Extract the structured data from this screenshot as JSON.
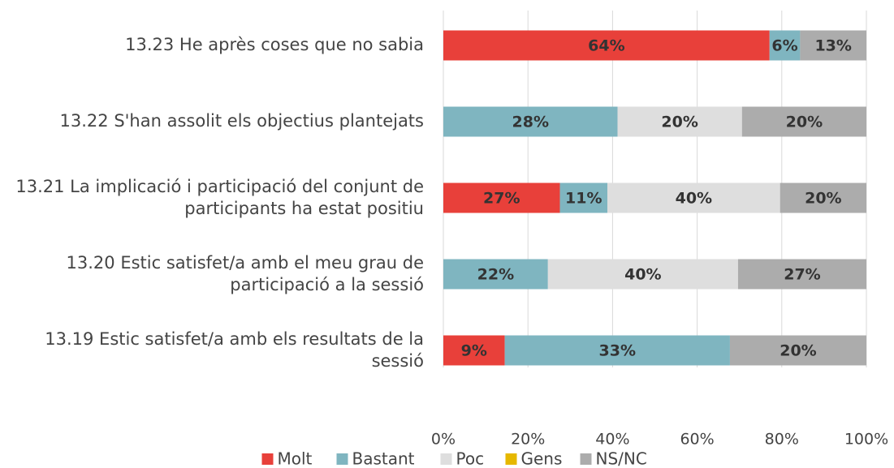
{
  "chart_data": {
    "type": "bar",
    "orientation": "horizontal",
    "stacking": "percent",
    "categories": [
      "13.23 He après coses que no sabia",
      "13.22 S'han assolit els objectius plantejats",
      "13.21 La implicació i participació del conjunt de participants ha estat positiu",
      "13.20 Estic satisfet/a amb el meu grau de participació a la sessió",
      "13.19 Estic satisfet/a amb els resultats de la sessió"
    ],
    "series": [
      {
        "name": "Molt",
        "color": "#e8403a",
        "values": [
          64,
          null,
          27,
          null,
          9
        ],
        "value_labels": [
          "64%",
          null,
          "27%",
          null,
          "9%"
        ]
      },
      {
        "name": "Bastant",
        "color": "#7fb5c0",
        "values": [
          6,
          28,
          11,
          22,
          33
        ],
        "value_labels": [
          "6%",
          "28%",
          "11%",
          "22%",
          "33%"
        ]
      },
      {
        "name": "Poc",
        "color": "#dedede",
        "values": [
          null,
          20,
          40,
          40,
          null
        ],
        "value_labels": [
          null,
          "20%",
          "40%",
          "40%",
          null
        ]
      },
      {
        "name": "Gens",
        "color": "#e6b800",
        "values": [
          null,
          null,
          null,
          null,
          null
        ],
        "value_labels": [
          null,
          null,
          null,
          null,
          null
        ]
      },
      {
        "name": "NS/NC",
        "color": "#acacac",
        "values": [
          13,
          20,
          20,
          27,
          20
        ],
        "value_labels": [
          "13%",
          "20%",
          "20%",
          "27%",
          "20%"
        ]
      }
    ],
    "xlim": [
      0,
      100
    ],
    "xticks": [
      {
        "value": 0,
        "label": "0%"
      },
      {
        "value": 20,
        "label": "20%"
      },
      {
        "value": 40,
        "label": "40%"
      },
      {
        "value": 60,
        "label": "60%"
      },
      {
        "value": 80,
        "label": "80%"
      },
      {
        "value": 100,
        "label": "100%"
      }
    ],
    "grid": true,
    "legend": "bottom"
  }
}
